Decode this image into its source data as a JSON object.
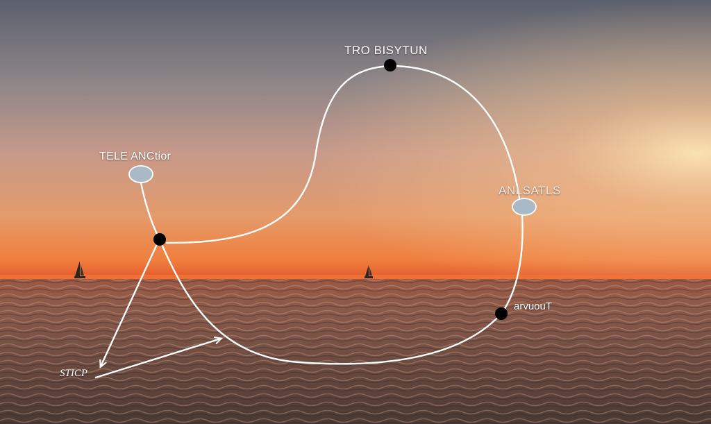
{
  "diagram": {
    "label_top": "TRO BISYTUN",
    "label_anchor": "TELE ANCtior",
    "label_right": "ANLSATLS",
    "label_lower_right": "arvuouT",
    "label_start": "STICP"
  },
  "colors": {
    "sky_top": "#5f6470",
    "sky_mid": "#c99a8a",
    "horizon_glow": "#f0783a",
    "sea": "#6d4a3c",
    "path_stroke": "#ffffff",
    "node_fill": "#000000",
    "oval_fill": "#a9b9c6"
  }
}
